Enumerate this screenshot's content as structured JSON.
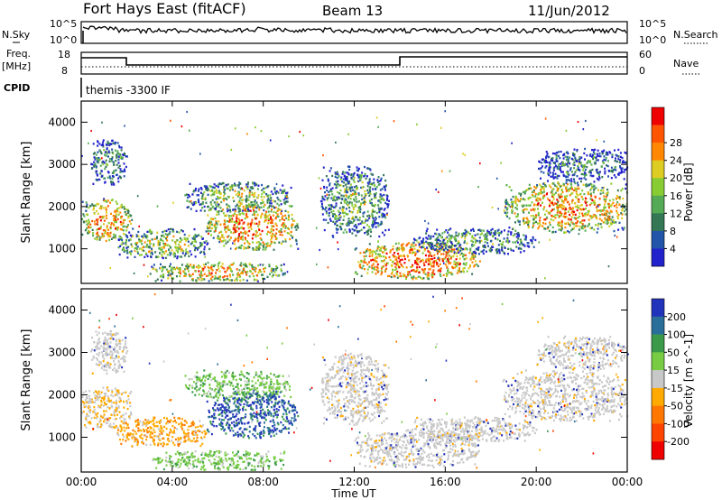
{
  "header": {
    "title": "Fort Hays East (fitACF)",
    "beam": "Beam 13",
    "date": "11/Jun/2012",
    "program": "themis -3300 IF"
  },
  "status_panels": {
    "nsky_label": "N.Sky",
    "nsky_ticks": [
      "10^5",
      "10^0"
    ],
    "nsearch_label": "N.Search",
    "nsearch_ticks": [
      "10^5",
      "10^0"
    ],
    "freq_label": "Freq.",
    "freq_unit": "[MHz]",
    "freq_ticks": [
      "18",
      "8"
    ],
    "nave_label": "Nave",
    "nave_ticks": [
      "60",
      "0"
    ],
    "cpid_label": "CPID"
  },
  "chart_data": [
    {
      "type": "heatmap",
      "title": "",
      "xlabel": "Time UT",
      "ylabel": "Slant Range [km]",
      "x_ticks": [
        "00:00",
        "04:00",
        "08:00",
        "12:00",
        "16:00",
        "20:00",
        "00:00"
      ],
      "xlim": [
        0,
        24
      ],
      "y_ticks": [
        "1000",
        "2000",
        "3000",
        "4000"
      ],
      "ylim": [
        180,
        4500
      ],
      "colorbar": {
        "label": "Power [dB]",
        "ticks": [
          "4",
          "8",
          "12",
          "16",
          "20",
          "24",
          "28"
        ],
        "colors": [
          "#2222cc",
          "#2255aa",
          "#337755",
          "#55aa55",
          "#88cc33",
          "#ddcc22",
          "#ff8800",
          "#ff5500",
          "#ee0000"
        ]
      },
      "regions": [
        {
          "t": [
            0,
            2.2
          ],
          "r": [
            1200,
            2200
          ],
          "level": 0.75
        },
        {
          "t": [
            0.4,
            2.0
          ],
          "r": [
            2500,
            3600
          ],
          "level": 0.35
        },
        {
          "t": [
            1.5,
            5.5
          ],
          "r": [
            800,
            1500
          ],
          "level": 0.55
        },
        {
          "t": [
            4.5,
            9.2
          ],
          "r": [
            1900,
            2600
          ],
          "level": 0.5
        },
        {
          "t": [
            5.5,
            9.5
          ],
          "r": [
            1000,
            2100
          ],
          "level": 0.8
        },
        {
          "t": [
            3.0,
            9.0
          ],
          "r": [
            250,
            700
          ],
          "level": 0.7
        },
        {
          "t": [
            10.5,
            13.5
          ],
          "r": [
            1300,
            3000
          ],
          "level": 0.45
        },
        {
          "t": [
            12.0,
            17.5
          ],
          "r": [
            300,
            1200
          ],
          "level": 0.85
        },
        {
          "t": [
            14.5,
            20.0
          ],
          "r": [
            900,
            1500
          ],
          "level": 0.4
        },
        {
          "t": [
            18.5,
            24.0
          ],
          "r": [
            1400,
            2600
          ],
          "level": 0.75
        },
        {
          "t": [
            20.0,
            24.0
          ],
          "r": [
            2600,
            3400
          ],
          "level": 0.3
        }
      ]
    },
    {
      "type": "heatmap",
      "title": "",
      "xlabel": "Time UT",
      "ylabel": "Slant Range [km]",
      "x_ticks": [
        "00:00",
        "04:00",
        "08:00",
        "12:00",
        "16:00",
        "20:00",
        "00:00"
      ],
      "xlim": [
        0,
        24
      ],
      "y_ticks": [
        "1000",
        "2000",
        "3000",
        "4000"
      ],
      "ylim": [
        180,
        4500
      ],
      "colorbar": {
        "label": "Velocity [m s^-1]",
        "ticks": [
          "200",
          "100",
          "50",
          "15",
          "-15",
          "-50",
          "-100",
          "-200"
        ],
        "colors": [
          "#2233bb",
          "#2a6f9a",
          "#3a9a4a",
          "#77cc44",
          "#c8c8c8",
          "#ffaa00",
          "#ff7700",
          "#ff4400",
          "#ee0000"
        ]
      },
      "regions": [
        {
          "t": [
            0,
            2.2
          ],
          "r": [
            1200,
            2200
          ],
          "vel": "-15..15 / -50"
        },
        {
          "t": [
            0.4,
            2.0
          ],
          "r": [
            2500,
            3600
          ],
          "vel": "-15..15"
        },
        {
          "t": [
            1.5,
            5.5
          ],
          "r": [
            800,
            1500
          ],
          "vel": "-50"
        },
        {
          "t": [
            4.5,
            9.2
          ],
          "r": [
            1900,
            2600
          ],
          "vel": "50"
        },
        {
          "t": [
            5.5,
            9.5
          ],
          "r": [
            1000,
            2100
          ],
          "vel": "100..200"
        },
        {
          "t": [
            3.0,
            9.0
          ],
          "r": [
            250,
            700
          ],
          "vel": "50"
        },
        {
          "t": [
            10.5,
            13.5
          ],
          "r": [
            1300,
            3000
          ],
          "vel": "-15..15"
        },
        {
          "t": [
            12.0,
            17.5
          ],
          "r": [
            300,
            1200
          ],
          "vel": "-15..15"
        },
        {
          "t": [
            18.5,
            24.0
          ],
          "r": [
            1400,
            2600
          ],
          "vel": "-15..15"
        }
      ]
    }
  ]
}
